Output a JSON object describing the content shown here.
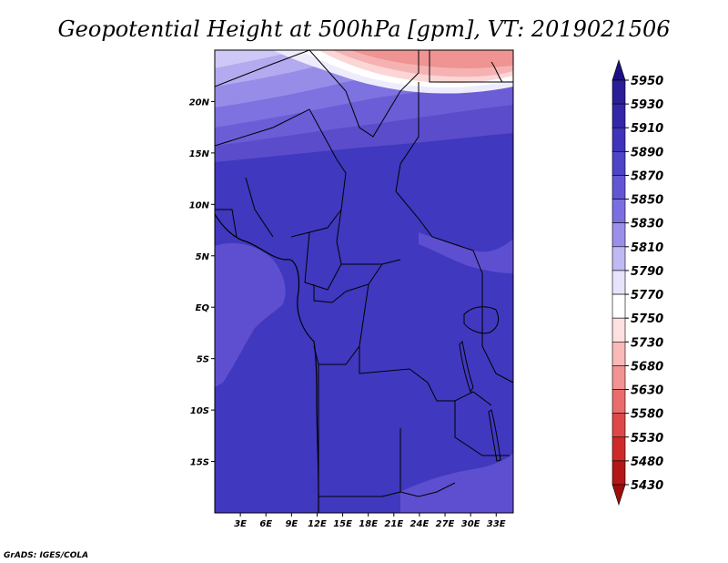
{
  "title": "Geopotential Height at 500hPa [gpm], VT: 2019021506",
  "credit": "GrADS: IGES/COLA",
  "map": {
    "lon_range": [
      0,
      35
    ],
    "lat_range": [
      -20,
      25
    ],
    "lon_ticks": [
      "3E",
      "6E",
      "9E",
      "12E",
      "15E",
      "18E",
      "21E",
      "24E",
      "27E",
      "30E",
      "33E"
    ],
    "lat_ticks": [
      "20N",
      "15N",
      "10N",
      "5N",
      "EQ",
      "5S",
      "10S",
      "15S"
    ]
  },
  "colorbar": {
    "levels": [
      "5950",
      "5930",
      "5910",
      "5890",
      "5870",
      "5850",
      "5830",
      "5810",
      "5790",
      "5770",
      "5750",
      "5730",
      "5680",
      "5630",
      "5580",
      "5530",
      "5480",
      "5430"
    ],
    "colors": [
      "#1e0f82",
      "#2a1f98",
      "#3426a8",
      "#3f33bb",
      "#4d44c6",
      "#6356d4",
      "#7a6fe0",
      "#9a90ea",
      "#c0baf4",
      "#e6e3fb",
      "#ffffff",
      "#fde0e0",
      "#f9b9b9",
      "#f39393",
      "#ea6d6d",
      "#df4848",
      "#cf2a2a",
      "#b41717",
      "#9c0d0d"
    ]
  }
}
